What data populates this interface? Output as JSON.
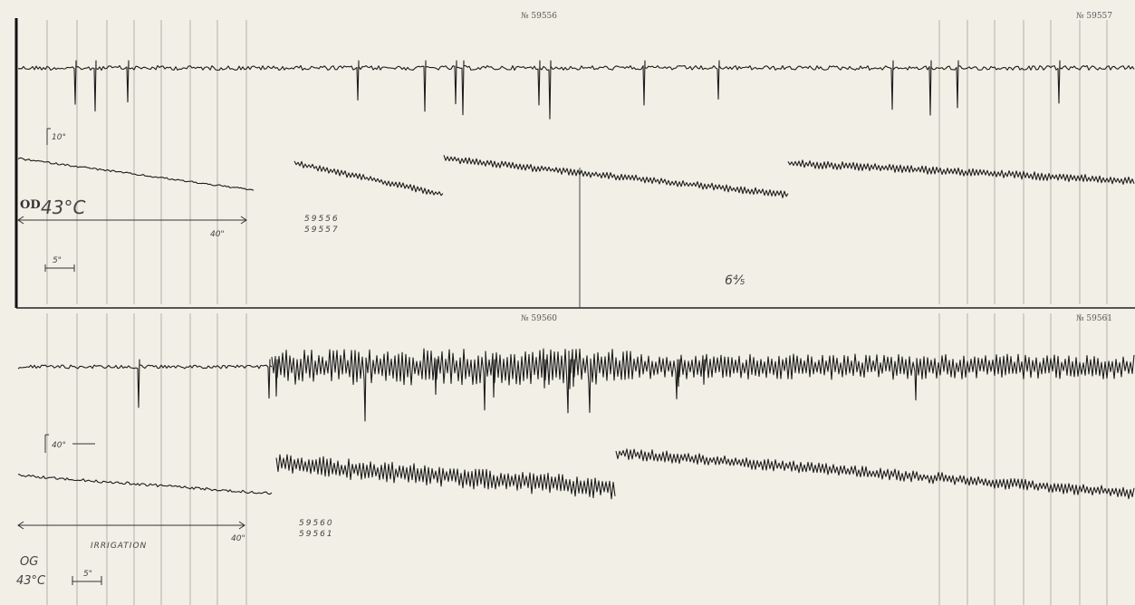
{
  "panels": [
    {
      "record_numbers": [
        "№ 59556",
        "№ 59557"
      ],
      "scale_label": "10°",
      "eye": "OD",
      "temperature": "43°C",
      "duration_label": "40\"",
      "time_scale_label": "5\"",
      "recording_ids": [
        "59556",
        "59557"
      ],
      "handwritten_note": "6⅘"
    },
    {
      "record_numbers": [
        "№ 59560",
        "№ 59561"
      ],
      "scale_label": "40°",
      "eye": "OG",
      "temperature": "43°C",
      "duration_label": "40\"",
      "time_scale_label": "5\"",
      "recording_ids": [
        "59560",
        "59561"
      ],
      "procedure": "IRRIGATION"
    }
  ]
}
